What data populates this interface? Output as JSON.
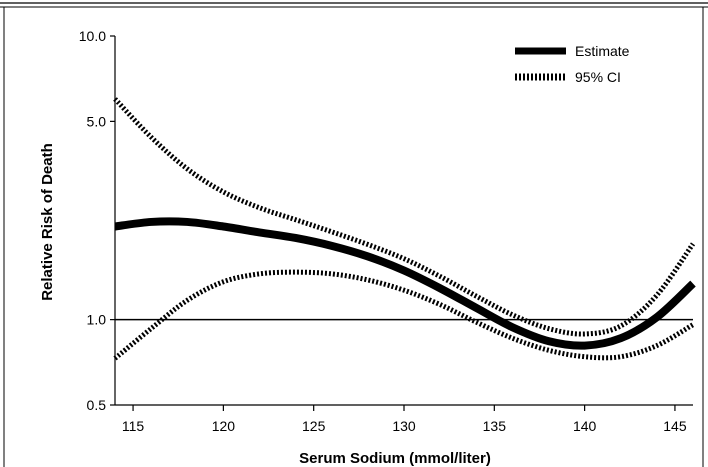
{
  "chart_data": {
    "type": "line",
    "xlabel": "Serum Sodium (mmol/liter)",
    "ylabel": "Relative Risk of Death",
    "xlim": [
      114,
      146
    ],
    "ylim": [
      0.5,
      10.0
    ],
    "yscale": "log",
    "xticks": [
      115,
      120,
      125,
      130,
      135,
      140,
      145
    ],
    "xtick_labels": [
      "115",
      "120",
      "125",
      "130",
      "135",
      "140",
      "145"
    ],
    "yticks": [
      0.5,
      1.0,
      5.0,
      10.0
    ],
    "ytick_labels": [
      "0.5",
      "1.0",
      "5.0",
      "10.0"
    ],
    "reference_line_y": 1.0,
    "legend_position": "top-right",
    "grid": false,
    "series": [
      {
        "name": "Estimate",
        "style": "solid",
        "x": [
          114,
          116,
          118,
          120,
          122,
          124,
          126,
          128,
          130,
          132,
          134,
          136,
          138,
          140,
          142,
          144,
          146
        ],
        "y": [
          2.13,
          2.21,
          2.21,
          2.13,
          2.03,
          1.94,
          1.82,
          1.67,
          1.49,
          1.29,
          1.1,
          0.94,
          0.84,
          0.81,
          0.86,
          1.02,
          1.34
        ]
      },
      {
        "name": "95% CI",
        "style": "dotted",
        "x": [
          114,
          116,
          118,
          120,
          122,
          124,
          126,
          128,
          130,
          132,
          134,
          136,
          138,
          140,
          142,
          144,
          146
        ],
        "y": [
          6.0,
          4.4,
          3.4,
          2.82,
          2.48,
          2.25,
          2.04,
          1.84,
          1.64,
          1.42,
          1.21,
          1.04,
          0.93,
          0.89,
          0.95,
          1.22,
          1.85
        ]
      },
      {
        "name": "",
        "style": "dotted",
        "x": [
          114,
          116,
          118,
          120,
          122,
          124,
          126,
          128,
          130,
          132,
          134,
          136,
          138,
          140,
          142,
          144,
          146
        ],
        "y": [
          0.73,
          0.93,
          1.17,
          1.36,
          1.45,
          1.47,
          1.45,
          1.38,
          1.27,
          1.13,
          0.98,
          0.86,
          0.78,
          0.74,
          0.74,
          0.81,
          0.96
        ]
      }
    ]
  }
}
